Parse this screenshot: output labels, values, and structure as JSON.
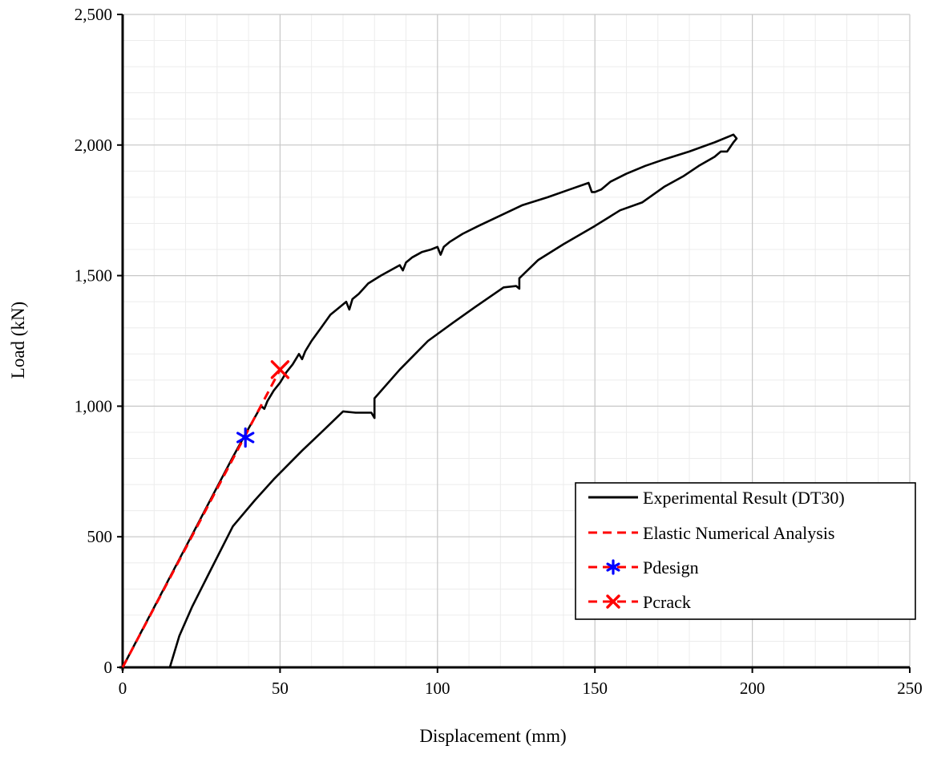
{
  "chart_data": {
    "type": "line",
    "title": "",
    "xlabel": "Displacement  (mm)",
    "ylabel": "Load (kN)",
    "xlim": [
      0,
      250
    ],
    "ylim": [
      0,
      2500
    ],
    "x_ticks": [
      0,
      50,
      100,
      150,
      200,
      250
    ],
    "y_ticks": [
      0,
      500,
      1000,
      1500,
      2000,
      2500
    ],
    "x_tick_labels": [
      "0",
      "50",
      "100",
      "150",
      "200",
      "250"
    ],
    "y_tick_labels": [
      "0",
      "500",
      "1,000",
      "1,500",
      "2,000",
      "2,500"
    ],
    "grid": {
      "major": true,
      "minor": true
    },
    "legend_position": "bottom-right",
    "series": [
      {
        "name": "Experimental Result (DT30)",
        "style": "solid",
        "color": "#000000",
        "x": [
          0,
          5,
          10,
          15,
          20,
          25,
          30,
          35,
          40,
          44,
          45,
          46,
          47,
          48,
          50,
          52,
          54,
          56,
          57,
          58,
          60,
          63,
          66,
          69,
          71,
          72,
          73,
          75,
          78,
          82,
          85,
          88,
          89,
          90,
          92,
          95,
          98,
          100,
          101,
          102,
          104,
          108,
          113,
          120,
          127,
          135,
          142,
          148,
          149,
          150,
          152,
          155,
          160,
          166,
          172,
          180,
          188,
          193,
          194,
          195,
          194,
          192,
          190,
          188,
          183,
          178,
          172,
          165,
          158,
          150,
          140,
          132,
          126,
          126,
          125,
          121,
          112,
          105,
          97,
          88,
          80,
          80,
          79,
          74,
          70,
          64,
          57,
          48,
          42,
          35,
          27,
          22,
          18,
          15
        ],
        "y": [
          0,
          115,
          230,
          345,
          460,
          575,
          690,
          805,
          915,
          1000,
          990,
          1020,
          1040,
          1060,
          1090,
          1130,
          1160,
          1200,
          1180,
          1210,
          1250,
          1300,
          1350,
          1380,
          1400,
          1370,
          1410,
          1430,
          1470,
          1500,
          1520,
          1540,
          1520,
          1550,
          1570,
          1590,
          1600,
          1610,
          1580,
          1610,
          1630,
          1660,
          1690,
          1730,
          1770,
          1800,
          1830,
          1855,
          1820,
          1820,
          1830,
          1860,
          1890,
          1920,
          1945,
          1975,
          2010,
          2035,
          2040,
          2025,
          2010,
          1975,
          1975,
          1955,
          1920,
          1880,
          1840,
          1780,
          1750,
          1690,
          1620,
          1560,
          1490,
          1450,
          1460,
          1455,
          1380,
          1320,
          1250,
          1140,
          1030,
          955,
          975,
          975,
          980,
          910,
          830,
          720,
          640,
          540,
          350,
          230,
          120,
          0
        ]
      },
      {
        "name": "Elastic Numerical Analysis",
        "style": "dashed",
        "color": "#ff0000",
        "x": [
          0,
          10,
          20,
          30,
          40,
          50
        ],
        "y": [
          0,
          228,
          456,
          684,
          912,
          1140
        ]
      },
      {
        "name": "Pdesign",
        "style": "marker",
        "marker": "asterisk",
        "color": "#0000ff",
        "x": [
          39
        ],
        "y": [
          880
        ]
      },
      {
        "name": "Pcrack",
        "style": "marker",
        "marker": "x",
        "color": "#ff0000",
        "x": [
          50
        ],
        "y": [
          1140
        ]
      }
    ]
  }
}
